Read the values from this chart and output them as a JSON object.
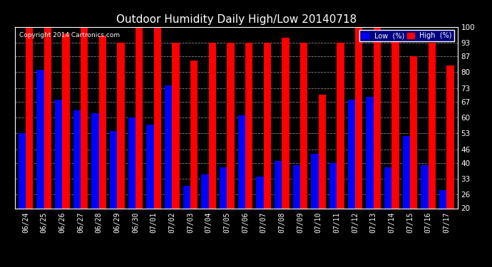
{
  "title": "Outdoor Humidity Daily High/Low 20140718",
  "copyright": "Copyright 2014 Cartronics.com",
  "categories": [
    "06/24",
    "06/25",
    "06/26",
    "06/27",
    "06/28",
    "06/29",
    "06/30",
    "07/01",
    "07/02",
    "07/03",
    "07/04",
    "07/05",
    "07/06",
    "07/07",
    "07/08",
    "07/09",
    "07/10",
    "07/11",
    "07/12",
    "07/13",
    "07/14",
    "07/15",
    "07/16",
    "07/17"
  ],
  "high_values": [
    100,
    100,
    97,
    100,
    96,
    93,
    100,
    100,
    93,
    85,
    93,
    93,
    93,
    93,
    95,
    93,
    70,
    93,
    100,
    100,
    97,
    87,
    93,
    83
  ],
  "low_values": [
    53,
    81,
    68,
    63,
    62,
    54,
    60,
    57,
    74,
    30,
    35,
    38,
    61,
    34,
    41,
    39,
    44,
    40,
    68,
    69,
    38,
    52,
    39,
    28
  ],
  "high_color": "#FF0000",
  "low_color": "#0000FF",
  "bg_color": "#000000",
  "plot_bg_color": "#000000",
  "ylim_min": 20,
  "ylim_max": 100,
  "yticks": [
    20,
    26,
    33,
    40,
    46,
    53,
    60,
    67,
    73,
    80,
    87,
    93,
    100
  ],
  "grid_color": "#888888",
  "legend_low_label": "Low  (%)",
  "legend_high_label": "High  (%)",
  "title_color": "#FFFFFF",
  "tick_color": "#FFFFFF",
  "copyright_color": "#FFFFFF"
}
